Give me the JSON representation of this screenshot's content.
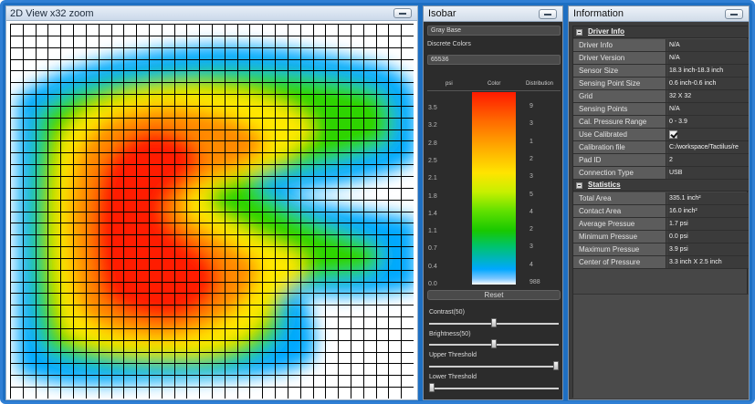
{
  "view": {
    "title": "2D View  x32 zoom",
    "grid": {
      "rows": 32,
      "cols": 32
    }
  },
  "isobar": {
    "title": "Isobar",
    "base_combo": "Gray Base",
    "colors_label": "Discrete Colors",
    "levels_combo": "65536",
    "headers": {
      "psi": "psi",
      "color": "Color",
      "distribution": "Distribution"
    },
    "psi_ticks": [
      "3.5",
      "3.2",
      "2.8",
      "2.5",
      "2.1",
      "1.8",
      "1.4",
      "1.1",
      "0.7",
      "0.4",
      "0.0"
    ],
    "distribution_ticks": [
      "9",
      "3",
      "1",
      "2",
      "3",
      "5",
      "4",
      "2",
      "3",
      "4",
      "988"
    ],
    "reset_label": "Reset",
    "contrast_label": "Contrast(50)",
    "brightness_label": "Brightness(50)",
    "upper_label": "Upper Threshold",
    "lower_label": "Lower Threshold",
    "contrast_value": 50,
    "brightness_value": 50,
    "upper_value": 100,
    "lower_value": 0
  },
  "info": {
    "title": "Information",
    "driver_section": "Driver Info",
    "driver_rows": [
      {
        "key": "Driver Info",
        "value": "N/A"
      },
      {
        "key": "Driver Version",
        "value": "N/A"
      },
      {
        "key": "Sensor Size",
        "value": "18.3 inch-18.3 inch"
      },
      {
        "key": "Sensing Point Size",
        "value": "0.6 inch-0.6 inch"
      },
      {
        "key": "Grid",
        "value": "32 X 32"
      },
      {
        "key": "Sensing Points",
        "value": "N/A"
      },
      {
        "key": "Cal. Pressure Range",
        "value": "0 - 3.9"
      },
      {
        "key": "Use Calibrated",
        "value": ""
      },
      {
        "key": "Calibration file",
        "value": "C:/workspace/Tactilus/re"
      },
      {
        "key": "Pad ID",
        "value": "2"
      },
      {
        "key": "Connection Type",
        "value": "USB"
      }
    ],
    "stats_section": "Statistics",
    "stats_rows": [
      {
        "key": "Total Area",
        "value": "335.1  inch²"
      },
      {
        "key": "Contact Area",
        "value": "16.0 inch²"
      },
      {
        "key": "Average Pressue",
        "value": "1.7 psi"
      },
      {
        "key": "Minimum Pressue",
        "value": "0.0 psi"
      },
      {
        "key": "Maximum Pressue",
        "value": "3.9 psi"
      },
      {
        "key": "Center of Pressure",
        "value": "3.3 inch X 2.5 inch"
      }
    ],
    "use_calibrated_checked": true
  },
  "colors": {
    "frame_blue": "#2f7fd4",
    "heat_red": "#ff1a00",
    "heat_orange": "#ff7a00",
    "heat_yellow": "#ffe800",
    "heat_green": "#2ed400",
    "heat_blue": "#00a8ff"
  }
}
